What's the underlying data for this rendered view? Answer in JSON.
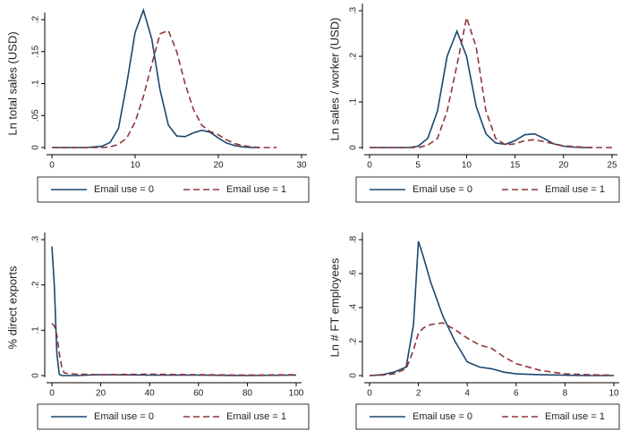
{
  "chart_data": [
    {
      "type": "line",
      "ylabel": "Ln total sales (USD)",
      "x": [
        0,
        2,
        4,
        6,
        7,
        8,
        9,
        10,
        11,
        12,
        13,
        14,
        15,
        16,
        17,
        18,
        19,
        20,
        21,
        22,
        23,
        24,
        25,
        26,
        27
      ],
      "series": [
        {
          "name": "Email use = 0",
          "color": "#1a476f",
          "dash": "solid",
          "values": [
            0,
            0,
            0,
            0.002,
            0.008,
            0.03,
            0.1,
            0.18,
            0.215,
            0.17,
            0.09,
            0.035,
            0.018,
            0.017,
            0.023,
            0.027,
            0.024,
            0.015,
            0.007,
            0.003,
            0.001,
            0,
            0,
            null,
            null
          ]
        },
        {
          "name": "Email use = 1",
          "color": "#90353b",
          "dash": "dashed",
          "values": [
            0,
            0,
            0,
            0,
            0.001,
            0.005,
            0.015,
            0.04,
            0.08,
            0.13,
            0.178,
            0.183,
            0.15,
            0.1,
            0.06,
            0.035,
            0.025,
            0.02,
            0.012,
            0.006,
            0.003,
            0.001,
            0,
            0,
            0
          ]
        }
      ],
      "xlim": [
        0,
        30
      ],
      "xticks": [
        0,
        10,
        20,
        30
      ],
      "ylim": [
        0,
        0.2
      ],
      "yticks": [
        0,
        {
          "value": 0.05,
          "label": ".05"
        },
        {
          "value": 0.1,
          "label": ".1"
        },
        {
          "value": 0.15,
          "label": ".15"
        },
        {
          "value": 0.2,
          "label": ".2"
        }
      ]
    },
    {
      "type": "line",
      "ylabel": "Ln sales / worker (USD)",
      "x": [
        0,
        2,
        4,
        5,
        6,
        7,
        8,
        9,
        10,
        11,
        12,
        13,
        14,
        15,
        16,
        17,
        18,
        19,
        20,
        21,
        22,
        23,
        24,
        25
      ],
      "series": [
        {
          "name": "Email use = 0",
          "color": "#1a476f",
          "dash": "solid",
          "values": [
            0,
            0,
            0,
            0.003,
            0.02,
            0.08,
            0.2,
            0.255,
            0.2,
            0.09,
            0.03,
            0.01,
            0.007,
            0.015,
            0.028,
            0.03,
            0.02,
            0.008,
            0.003,
            0.001,
            0,
            0,
            null,
            null
          ]
        },
        {
          "name": "Email use = 1",
          "color": "#90353b",
          "dash": "dashed",
          "values": [
            0,
            0,
            0,
            0,
            0.005,
            0.02,
            0.08,
            0.18,
            0.285,
            0.22,
            0.08,
            0.02,
            0.006,
            0.008,
            0.015,
            0.017,
            0.013,
            0.008,
            0.004,
            0.002,
            0.001,
            0,
            0,
            0
          ]
        }
      ],
      "xlim": [
        0,
        25
      ],
      "xticks": [
        0,
        5,
        10,
        15,
        20,
        25
      ],
      "ylim": [
        0,
        0.3
      ],
      "yticks": [
        0,
        {
          "value": 0.1,
          "label": ".1"
        },
        {
          "value": 0.2,
          "label": ".2"
        },
        {
          "value": 0.3,
          "label": ".3"
        }
      ]
    },
    {
      "type": "line",
      "ylabel": "% direct exports",
      "x": [
        0,
        1,
        2,
        3,
        4,
        5,
        6,
        8,
        10,
        20,
        40,
        60,
        80,
        100
      ],
      "series": [
        {
          "name": "Email use = 0",
          "color": "#1a476f",
          "dash": "solid",
          "values": [
            0.285,
            0.2,
            0.05,
            0.003,
            0,
            0,
            0,
            0,
            0,
            0.002,
            0.001,
            0.001,
            0,
            0.001
          ]
        },
        {
          "name": "Email use = 1",
          "color": "#90353b",
          "dash": "dashed",
          "values": [
            0.115,
            0.11,
            0.09,
            0.05,
            0.02,
            0.006,
            0.005,
            0.004,
            0.003,
            0.002,
            0.003,
            0.002,
            0.001,
            0.002
          ]
        }
      ],
      "xlim": [
        0,
        100
      ],
      "xticks": [
        0,
        20,
        40,
        60,
        80,
        100
      ],
      "ylim": [
        0,
        0.3
      ],
      "yticks": [
        0,
        {
          "value": 0.1,
          "label": ".1"
        },
        {
          "value": 0.2,
          "label": ".2"
        },
        {
          "value": 0.3,
          "label": ".3"
        }
      ]
    },
    {
      "type": "line",
      "ylabel": "Ln # FT employees",
      "x": [
        0,
        0.5,
        1,
        1.5,
        1.8,
        2,
        2.2,
        2.5,
        3,
        3.5,
        4,
        4.5,
        5,
        5.5,
        6,
        7,
        8,
        9,
        10
      ],
      "series": [
        {
          "name": "Email use = 0",
          "color": "#1a476f",
          "dash": "solid",
          "values": [
            0,
            0.005,
            0.02,
            0.05,
            0.3,
            0.79,
            0.7,
            0.55,
            0.35,
            0.2,
            0.08,
            0.05,
            0.04,
            0.02,
            0.01,
            0.005,
            0.002,
            0,
            0
          ]
        },
        {
          "name": "Email use = 1",
          "color": "#90353b",
          "dash": "dashed",
          "values": [
            0,
            0.002,
            0.01,
            0.04,
            0.15,
            0.25,
            0.28,
            0.3,
            0.31,
            0.27,
            0.22,
            0.18,
            0.16,
            0.11,
            0.07,
            0.03,
            0.01,
            0.005,
            0.002
          ]
        }
      ],
      "xlim": [
        0,
        10
      ],
      "xticks": [
        0,
        2,
        4,
        6,
        8,
        10
      ],
      "ylim": [
        0,
        0.8
      ],
      "yticks": [
        0,
        {
          "value": 0.2,
          "label": ".2"
        },
        {
          "value": 0.4,
          "label": ".4"
        },
        {
          "value": 0.6,
          "label": ".6"
        },
        {
          "value": 0.8,
          "label": ".8"
        }
      ]
    }
  ]
}
